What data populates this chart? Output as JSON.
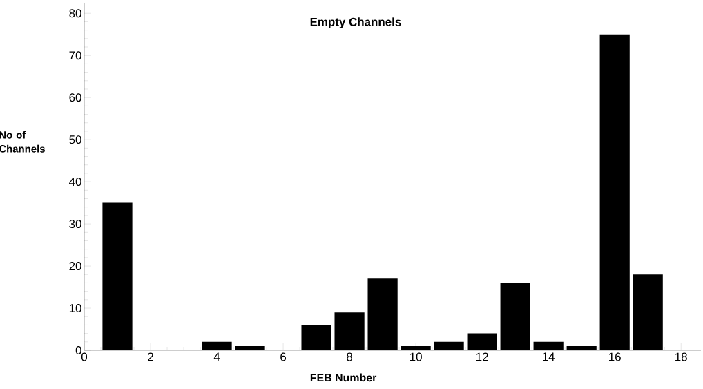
{
  "chart_data": {
    "type": "bar",
    "title": "Empty Channels",
    "xlabel": "FEB Number",
    "ylabel": "No of Channels",
    "x": [
      1,
      2,
      3,
      4,
      5,
      6,
      7,
      8,
      9,
      10,
      11,
      12,
      13,
      14,
      15,
      16,
      17
    ],
    "values": [
      35,
      0,
      0,
      2,
      1,
      0,
      6,
      9,
      17,
      1,
      2,
      4,
      16,
      2,
      1,
      75,
      18
    ],
    "color": "#000000",
    "xlim": [
      0,
      18.6
    ],
    "ylim": [
      0,
      82.5
    ],
    "xticks": [
      0,
      2,
      4,
      6,
      8,
      10,
      12,
      14,
      16,
      18
    ],
    "yticks": [
      0,
      10,
      20,
      30,
      40,
      50,
      60,
      70,
      80
    ],
    "tick_labels": "xy"
  }
}
